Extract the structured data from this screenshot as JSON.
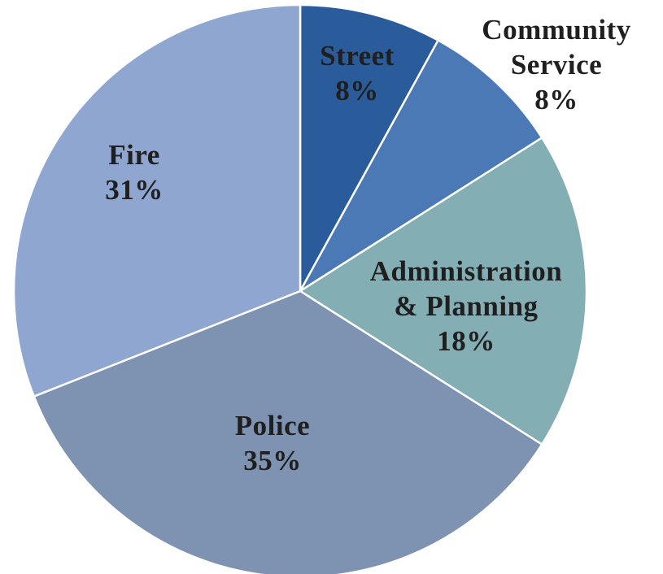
{
  "chart_data": {
    "type": "pie",
    "start_angle_deg": 90,
    "direction": "clockwise",
    "slices": [
      {
        "label_lines": [
          "Street"
        ],
        "percent_label": "8%",
        "value": 8,
        "color": "#2a5b9a"
      },
      {
        "label_lines": [
          "Community",
          "Service"
        ],
        "percent_label": "8%",
        "value": 8,
        "color": "#4a79b6"
      },
      {
        "label_lines": [
          "Administration",
          "& Planning"
        ],
        "percent_label": "18%",
        "value": 18,
        "color": "#82aeb4"
      },
      {
        "label_lines": [
          "Police"
        ],
        "percent_label": "35%",
        "value": 35,
        "color": "#7e92b1"
      },
      {
        "label_lines": [
          "Fire"
        ],
        "percent_label": "31%",
        "value": 31,
        "color": "#8ea6d0"
      }
    ]
  }
}
